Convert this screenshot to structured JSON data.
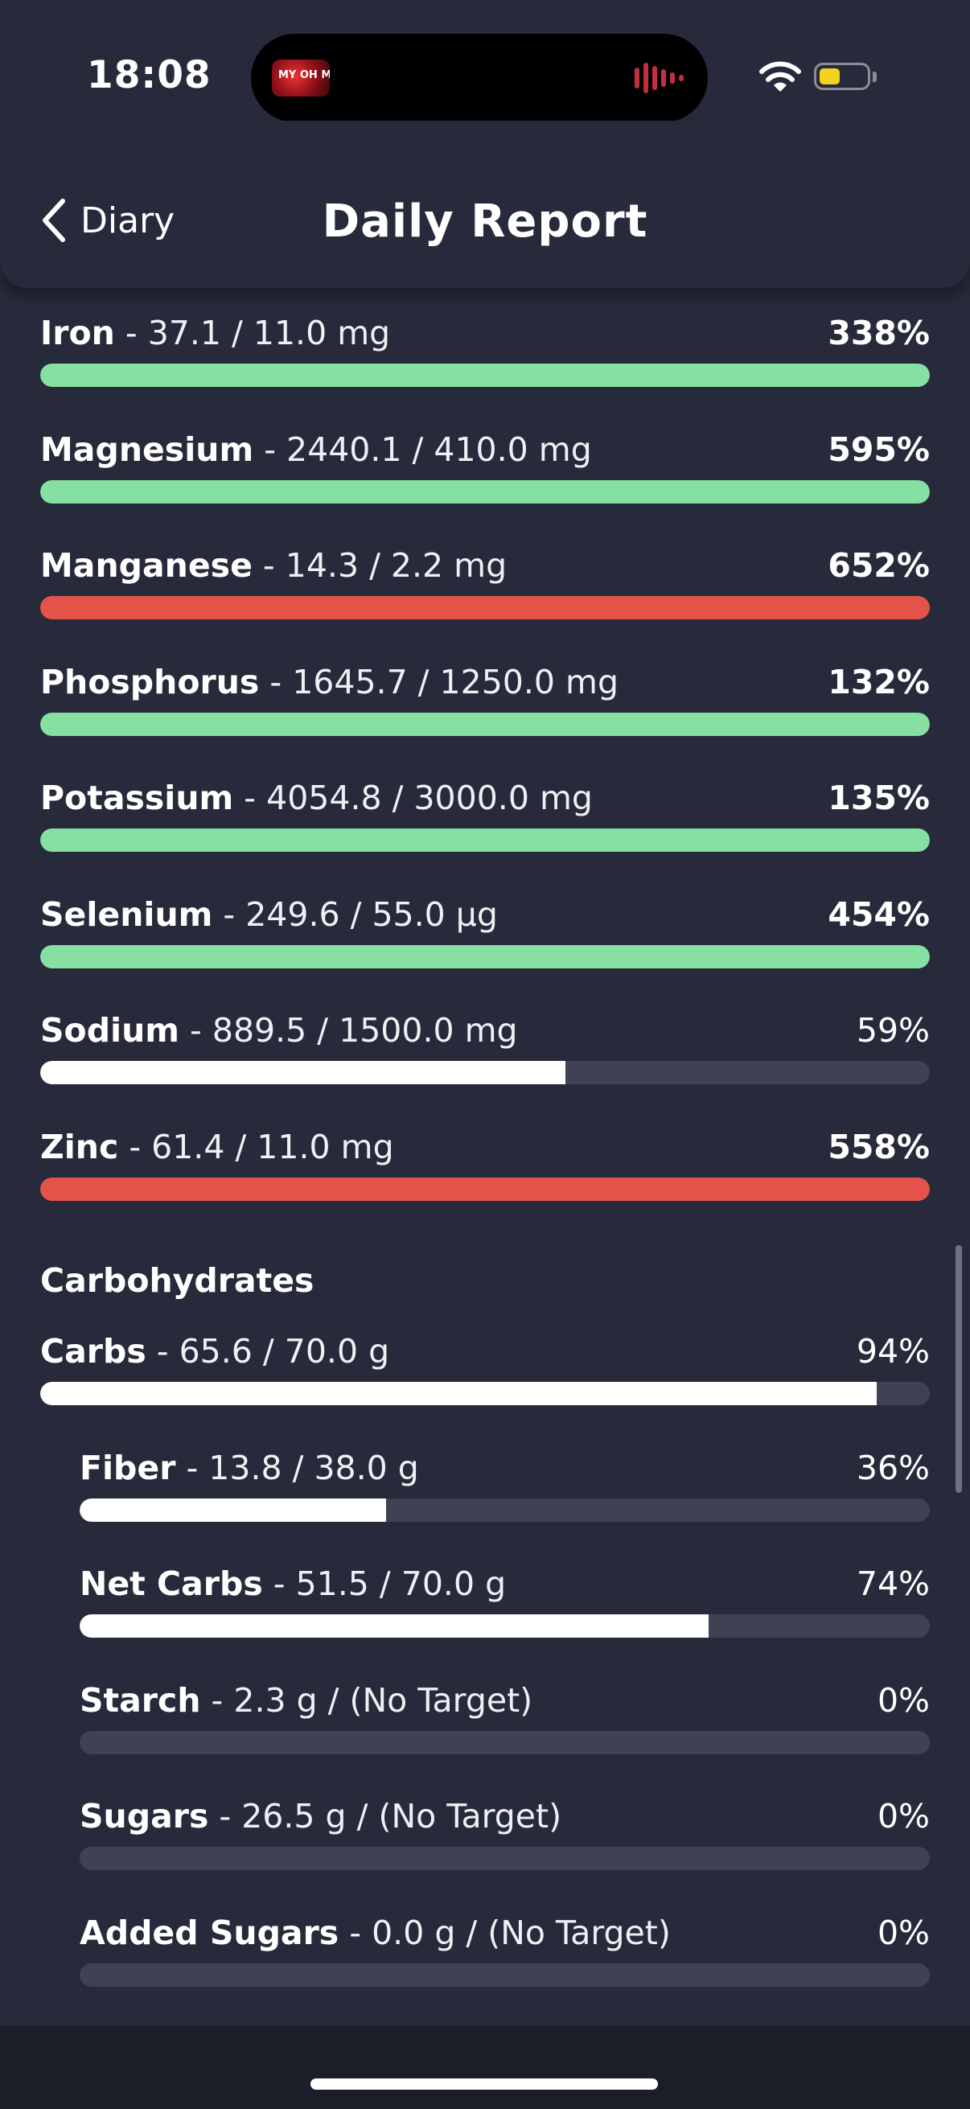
{
  "status_bar": {
    "time": "18:08",
    "island_art_text": "MY OH M",
    "wifi_icon": "wifi-icon",
    "battery_level": 0.35,
    "battery_color": "#f2d21f"
  },
  "nav": {
    "back_label": "Diary",
    "title": "Daily Report"
  },
  "colors": {
    "ok": "#86e0a1",
    "over": "#e4534a",
    "under": "#ffffff",
    "track": "#3f4253"
  },
  "minerals": [
    {
      "name": "Iron",
      "values": " - 37.1 / 11.0 mg",
      "percent": "338%",
      "fraction": 1.0,
      "status": "ok",
      "bold_pct": true
    },
    {
      "name": "Magnesium",
      "values": " - 2440.1 / 410.0 mg",
      "percent": "595%",
      "fraction": 1.0,
      "status": "ok",
      "bold_pct": true
    },
    {
      "name": "Manganese",
      "values": " - 14.3 / 2.2 mg",
      "percent": "652%",
      "fraction": 1.0,
      "status": "over",
      "bold_pct": true
    },
    {
      "name": "Phosphorus",
      "values": " - 1645.7 / 1250.0 mg",
      "percent": "132%",
      "fraction": 1.0,
      "status": "ok",
      "bold_pct": true
    },
    {
      "name": "Potassium",
      "values": " - 4054.8 / 3000.0 mg",
      "percent": "135%",
      "fraction": 1.0,
      "status": "ok",
      "bold_pct": true
    },
    {
      "name": "Selenium",
      "values": " - 249.6 / 55.0 µg",
      "percent": "454%",
      "fraction": 1.0,
      "status": "ok",
      "bold_pct": true
    },
    {
      "name": "Sodium",
      "values": " - 889.5 / 1500.0 mg",
      "percent": "59%",
      "fraction": 0.59,
      "status": "under",
      "bold_pct": false
    },
    {
      "name": "Zinc",
      "values": " - 61.4 / 11.0 mg",
      "percent": "558%",
      "fraction": 1.0,
      "status": "over",
      "bold_pct": true
    }
  ],
  "carbohydrates": {
    "section_title": "Carbohydrates",
    "items": [
      {
        "name": "Carbs",
        "values": " - 65.6 / 70.0 g",
        "percent": "94%",
        "fraction": 0.94,
        "status": "under",
        "bold_pct": false,
        "indent": false
      },
      {
        "name": "Fiber",
        "values": " - 13.8 / 38.0 g",
        "percent": "36%",
        "fraction": 0.36,
        "status": "under",
        "bold_pct": false,
        "indent": true
      },
      {
        "name": "Net Carbs",
        "values": " - 51.5 / 70.0 g",
        "percent": "74%",
        "fraction": 0.74,
        "status": "under",
        "bold_pct": false,
        "indent": true
      },
      {
        "name": "Starch",
        "values": " - 2.3 g / (No Target)",
        "percent": "0%",
        "fraction": 0.0,
        "status": "under",
        "bold_pct": false,
        "indent": true
      },
      {
        "name": "Sugars",
        "values": " - 26.5 g / (No Target)",
        "percent": "0%",
        "fraction": 0.0,
        "status": "under",
        "bold_pct": false,
        "indent": true
      },
      {
        "name": "Added Sugars",
        "values": " - 0.0 g / (No Target)",
        "percent": "0%",
        "fraction": 0.0,
        "status": "under",
        "bold_pct": false,
        "indent": true
      }
    ]
  }
}
